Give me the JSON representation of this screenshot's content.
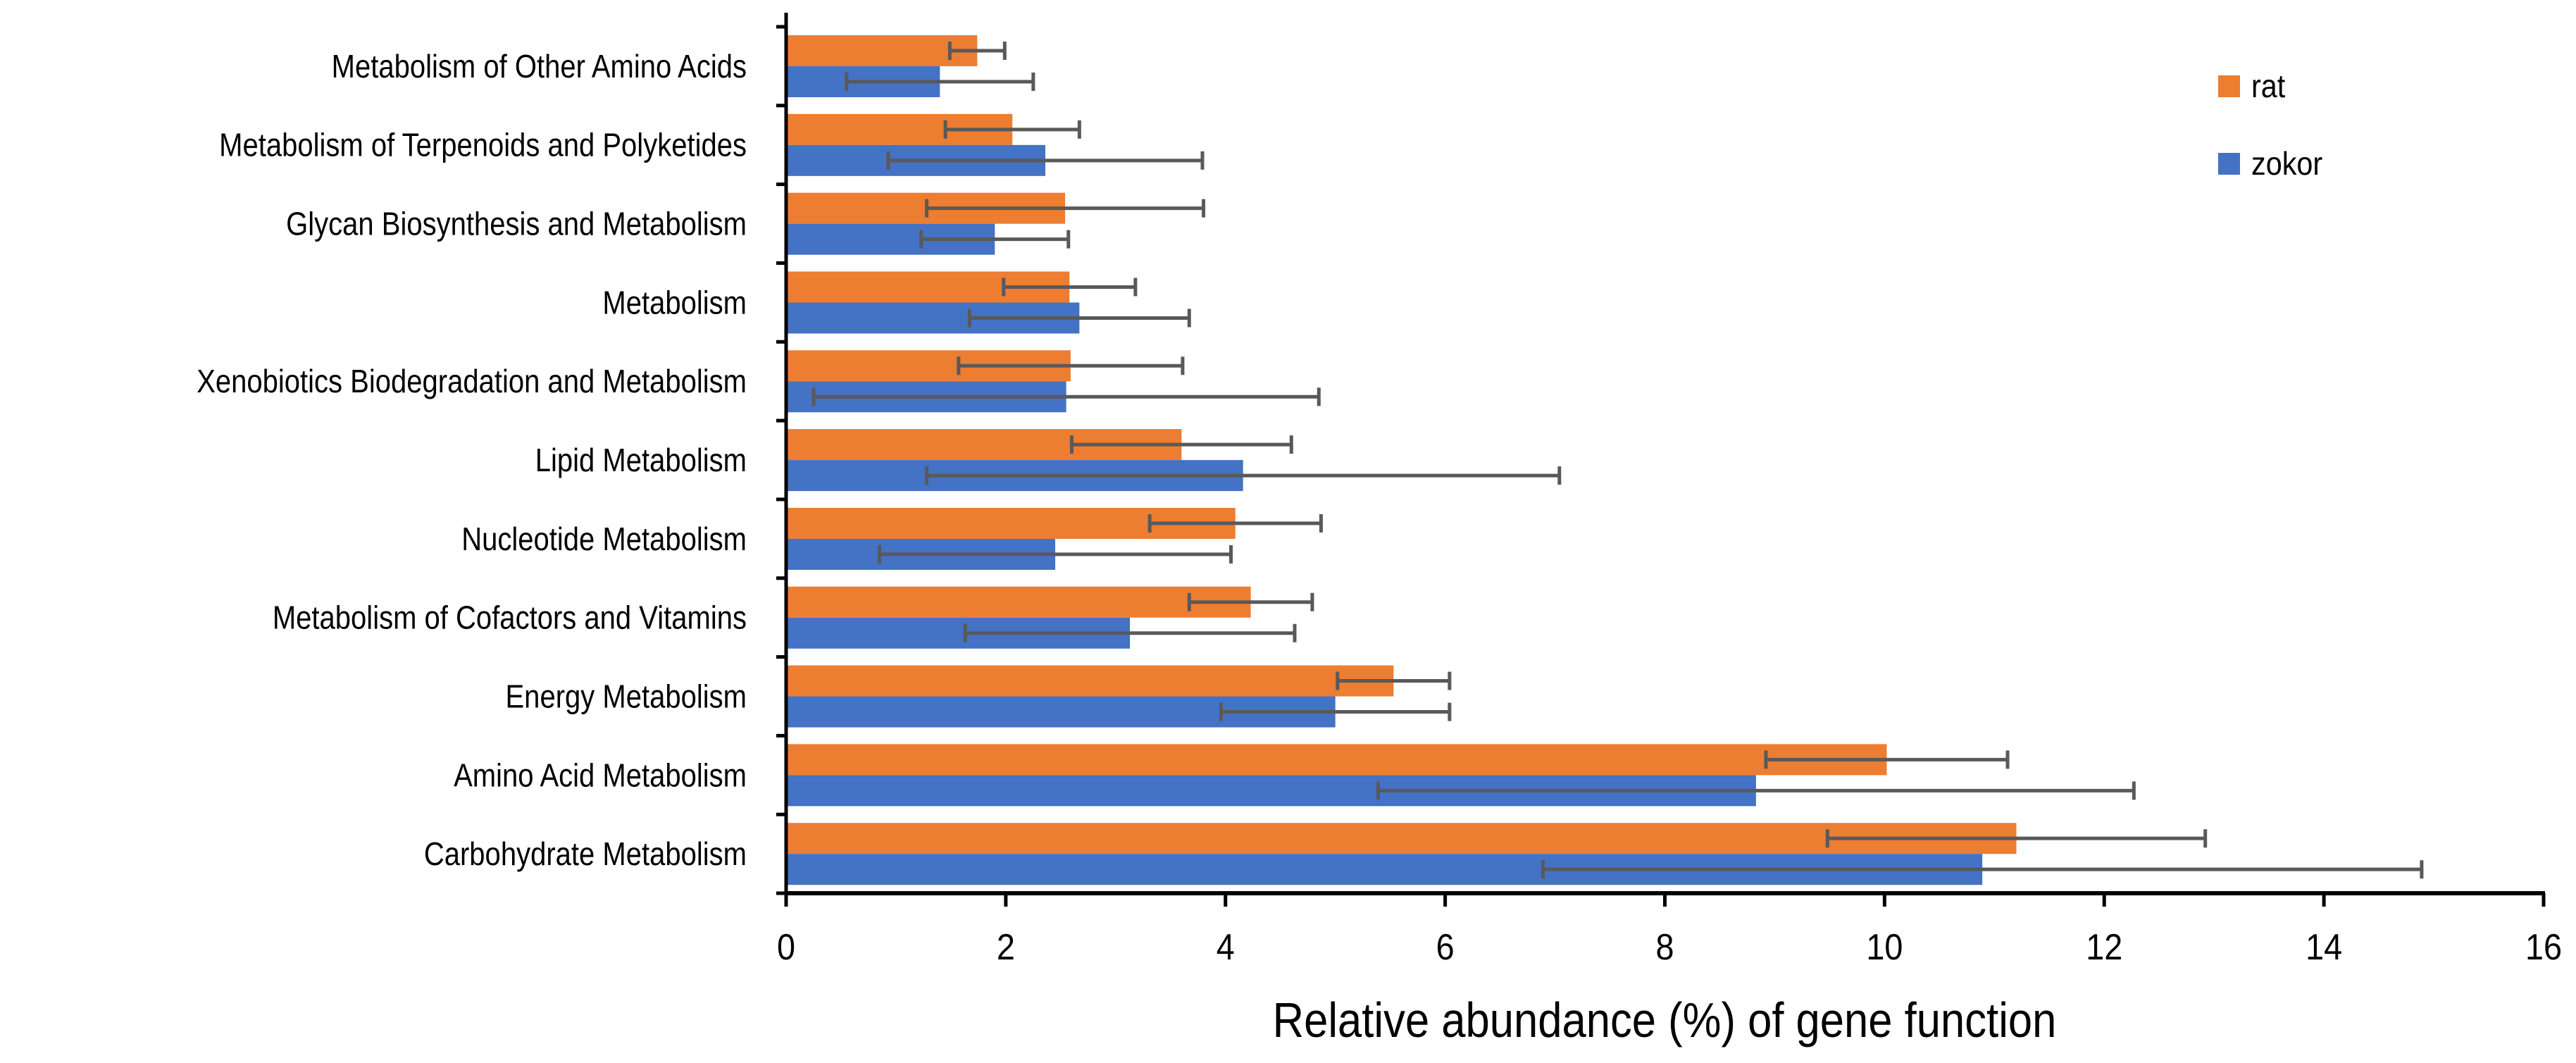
{
  "chart_data": {
    "type": "bar",
    "orientation": "horizontal",
    "categories": [
      "Metabolism of Other Amino Acids",
      "Metabolism of Terpenoids and Polyketides",
      "Glycan Biosynthesis and Metabolism",
      "Metabolism",
      "Xenobiotics Biodegradation and Metabolism",
      "Lipid Metabolism",
      "Nucleotide Metabolism",
      "Metabolism of Cofactors and Vitamins",
      "Energy Metabolism",
      "Amino Acid Metabolism",
      "Carbohydrate Metabolism"
    ],
    "series": [
      {
        "name": "rat",
        "color": "#ED7D31",
        "values": [
          1.74,
          2.06,
          2.54,
          2.58,
          2.59,
          3.6,
          4.09,
          4.23,
          5.53,
          10.02,
          11.2
        ],
        "errors": [
          0.25,
          0.61,
          1.26,
          0.6,
          1.02,
          1.0,
          0.78,
          0.56,
          0.51,
          1.1,
          1.72
        ]
      },
      {
        "name": "zokor",
        "color": "#4472C4",
        "values": [
          1.4,
          2.36,
          1.9,
          2.67,
          2.55,
          4.16,
          2.45,
          3.13,
          5.0,
          8.83,
          10.89
        ],
        "errors": [
          0.85,
          1.43,
          0.67,
          1.0,
          2.3,
          2.88,
          1.6,
          1.5,
          1.04,
          3.44,
          4.0
        ]
      }
    ],
    "xlabel": "Relative abundance (%) of gene function",
    "ylabel": "",
    "xlim": [
      0,
      16
    ],
    "xticks": [
      "0",
      "2",
      "4",
      "6",
      "8",
      "10",
      "12",
      "14",
      "16"
    ],
    "grid": false,
    "legend_position": "top-right",
    "error_bar_color": "#595959"
  }
}
